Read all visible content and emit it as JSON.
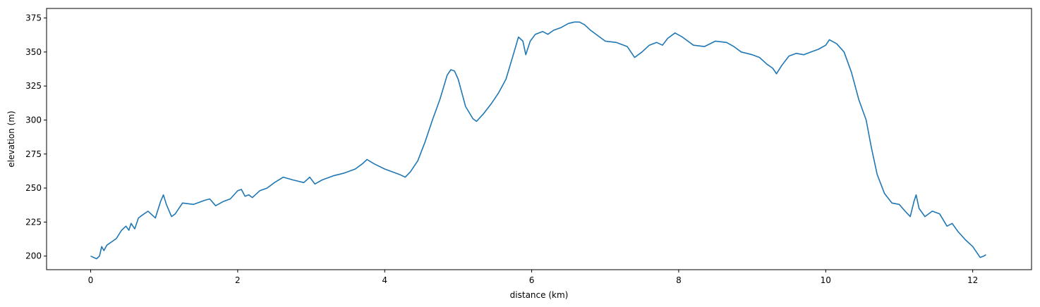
{
  "chart_data": {
    "type": "line",
    "title": "",
    "xlabel": "distance (km)",
    "ylabel": "elevation (m)",
    "xlim": [
      -0.6,
      12.8
    ],
    "ylim": [
      190,
      382
    ],
    "xticks": [
      0,
      2,
      4,
      6,
      8,
      10,
      12
    ],
    "yticks": [
      200,
      225,
      250,
      275,
      300,
      325,
      350,
      375
    ],
    "grid": false,
    "line_color": "#1f77b4",
    "series": [
      {
        "name": "",
        "points": [
          [
            0.0,
            200
          ],
          [
            0.08,
            198
          ],
          [
            0.12,
            200
          ],
          [
            0.15,
            207
          ],
          [
            0.18,
            204
          ],
          [
            0.22,
            208
          ],
          [
            0.3,
            211
          ],
          [
            0.35,
            213
          ],
          [
            0.42,
            219
          ],
          [
            0.48,
            222
          ],
          [
            0.52,
            219
          ],
          [
            0.55,
            224
          ],
          [
            0.6,
            220
          ],
          [
            0.65,
            228
          ],
          [
            0.7,
            230
          ],
          [
            0.78,
            233
          ],
          [
            0.88,
            228
          ],
          [
            0.95,
            240
          ],
          [
            0.99,
            245
          ],
          [
            1.03,
            238
          ],
          [
            1.1,
            229
          ],
          [
            1.15,
            231
          ],
          [
            1.25,
            239
          ],
          [
            1.4,
            238
          ],
          [
            1.55,
            241
          ],
          [
            1.62,
            242
          ],
          [
            1.7,
            237
          ],
          [
            1.8,
            240
          ],
          [
            1.9,
            242
          ],
          [
            2.0,
            248
          ],
          [
            2.05,
            249
          ],
          [
            2.1,
            244
          ],
          [
            2.15,
            245
          ],
          [
            2.2,
            243
          ],
          [
            2.3,
            248
          ],
          [
            2.4,
            250
          ],
          [
            2.5,
            254
          ],
          [
            2.62,
            258
          ],
          [
            2.75,
            256
          ],
          [
            2.9,
            254
          ],
          [
            2.98,
            258
          ],
          [
            3.05,
            253
          ],
          [
            3.15,
            256
          ],
          [
            3.3,
            259
          ],
          [
            3.45,
            261
          ],
          [
            3.6,
            264
          ],
          [
            3.7,
            268
          ],
          [
            3.76,
            271
          ],
          [
            3.85,
            268
          ],
          [
            4.0,
            264
          ],
          [
            4.1,
            262
          ],
          [
            4.2,
            260
          ],
          [
            4.28,
            258
          ],
          [
            4.35,
            262
          ],
          [
            4.45,
            270
          ],
          [
            4.55,
            284
          ],
          [
            4.65,
            300
          ],
          [
            4.75,
            315
          ],
          [
            4.85,
            333
          ],
          [
            4.9,
            337
          ],
          [
            4.95,
            336
          ],
          [
            5.0,
            330
          ],
          [
            5.1,
            310
          ],
          [
            5.2,
            301
          ],
          [
            5.25,
            299
          ],
          [
            5.35,
            305
          ],
          [
            5.45,
            312
          ],
          [
            5.55,
            320
          ],
          [
            5.65,
            330
          ],
          [
            5.75,
            348
          ],
          [
            5.82,
            361
          ],
          [
            5.88,
            358
          ],
          [
            5.92,
            348
          ],
          [
            5.98,
            358
          ],
          [
            6.05,
            363
          ],
          [
            6.15,
            365
          ],
          [
            6.22,
            363
          ],
          [
            6.3,
            366
          ],
          [
            6.4,
            368
          ],
          [
            6.5,
            371
          ],
          [
            6.58,
            372
          ],
          [
            6.65,
            372
          ],
          [
            6.72,
            370
          ],
          [
            6.8,
            366
          ],
          [
            6.9,
            362
          ],
          [
            7.0,
            358
          ],
          [
            7.15,
            357
          ],
          [
            7.3,
            354
          ],
          [
            7.4,
            346
          ],
          [
            7.5,
            350
          ],
          [
            7.6,
            355
          ],
          [
            7.7,
            357
          ],
          [
            7.78,
            355
          ],
          [
            7.85,
            360
          ],
          [
            7.95,
            364
          ],
          [
            8.05,
            361
          ],
          [
            8.2,
            355
          ],
          [
            8.35,
            354
          ],
          [
            8.5,
            358
          ],
          [
            8.65,
            357
          ],
          [
            8.75,
            354
          ],
          [
            8.85,
            350
          ],
          [
            9.0,
            348
          ],
          [
            9.1,
            346
          ],
          [
            9.2,
            341
          ],
          [
            9.28,
            338
          ],
          [
            9.33,
            334
          ],
          [
            9.4,
            340
          ],
          [
            9.5,
            347
          ],
          [
            9.6,
            349
          ],
          [
            9.7,
            348
          ],
          [
            9.8,
            350
          ],
          [
            9.9,
            352
          ],
          [
            10.0,
            355
          ],
          [
            10.05,
            359
          ],
          [
            10.15,
            356
          ],
          [
            10.25,
            350
          ],
          [
            10.35,
            335
          ],
          [
            10.45,
            315
          ],
          [
            10.55,
            300
          ],
          [
            10.62,
            280
          ],
          [
            10.7,
            260
          ],
          [
            10.8,
            246
          ],
          [
            10.9,
            239
          ],
          [
            11.0,
            238
          ],
          [
            11.08,
            233
          ],
          [
            11.15,
            229
          ],
          [
            11.2,
            240
          ],
          [
            11.23,
            245
          ],
          [
            11.27,
            235
          ],
          [
            11.35,
            229
          ],
          [
            11.45,
            233
          ],
          [
            11.55,
            231
          ],
          [
            11.65,
            222
          ],
          [
            11.72,
            224
          ],
          [
            11.8,
            218
          ],
          [
            11.9,
            212
          ],
          [
            12.0,
            207
          ],
          [
            12.1,
            199
          ],
          [
            12.15,
            200
          ],
          [
            12.18,
            201
          ]
        ]
      }
    ]
  }
}
